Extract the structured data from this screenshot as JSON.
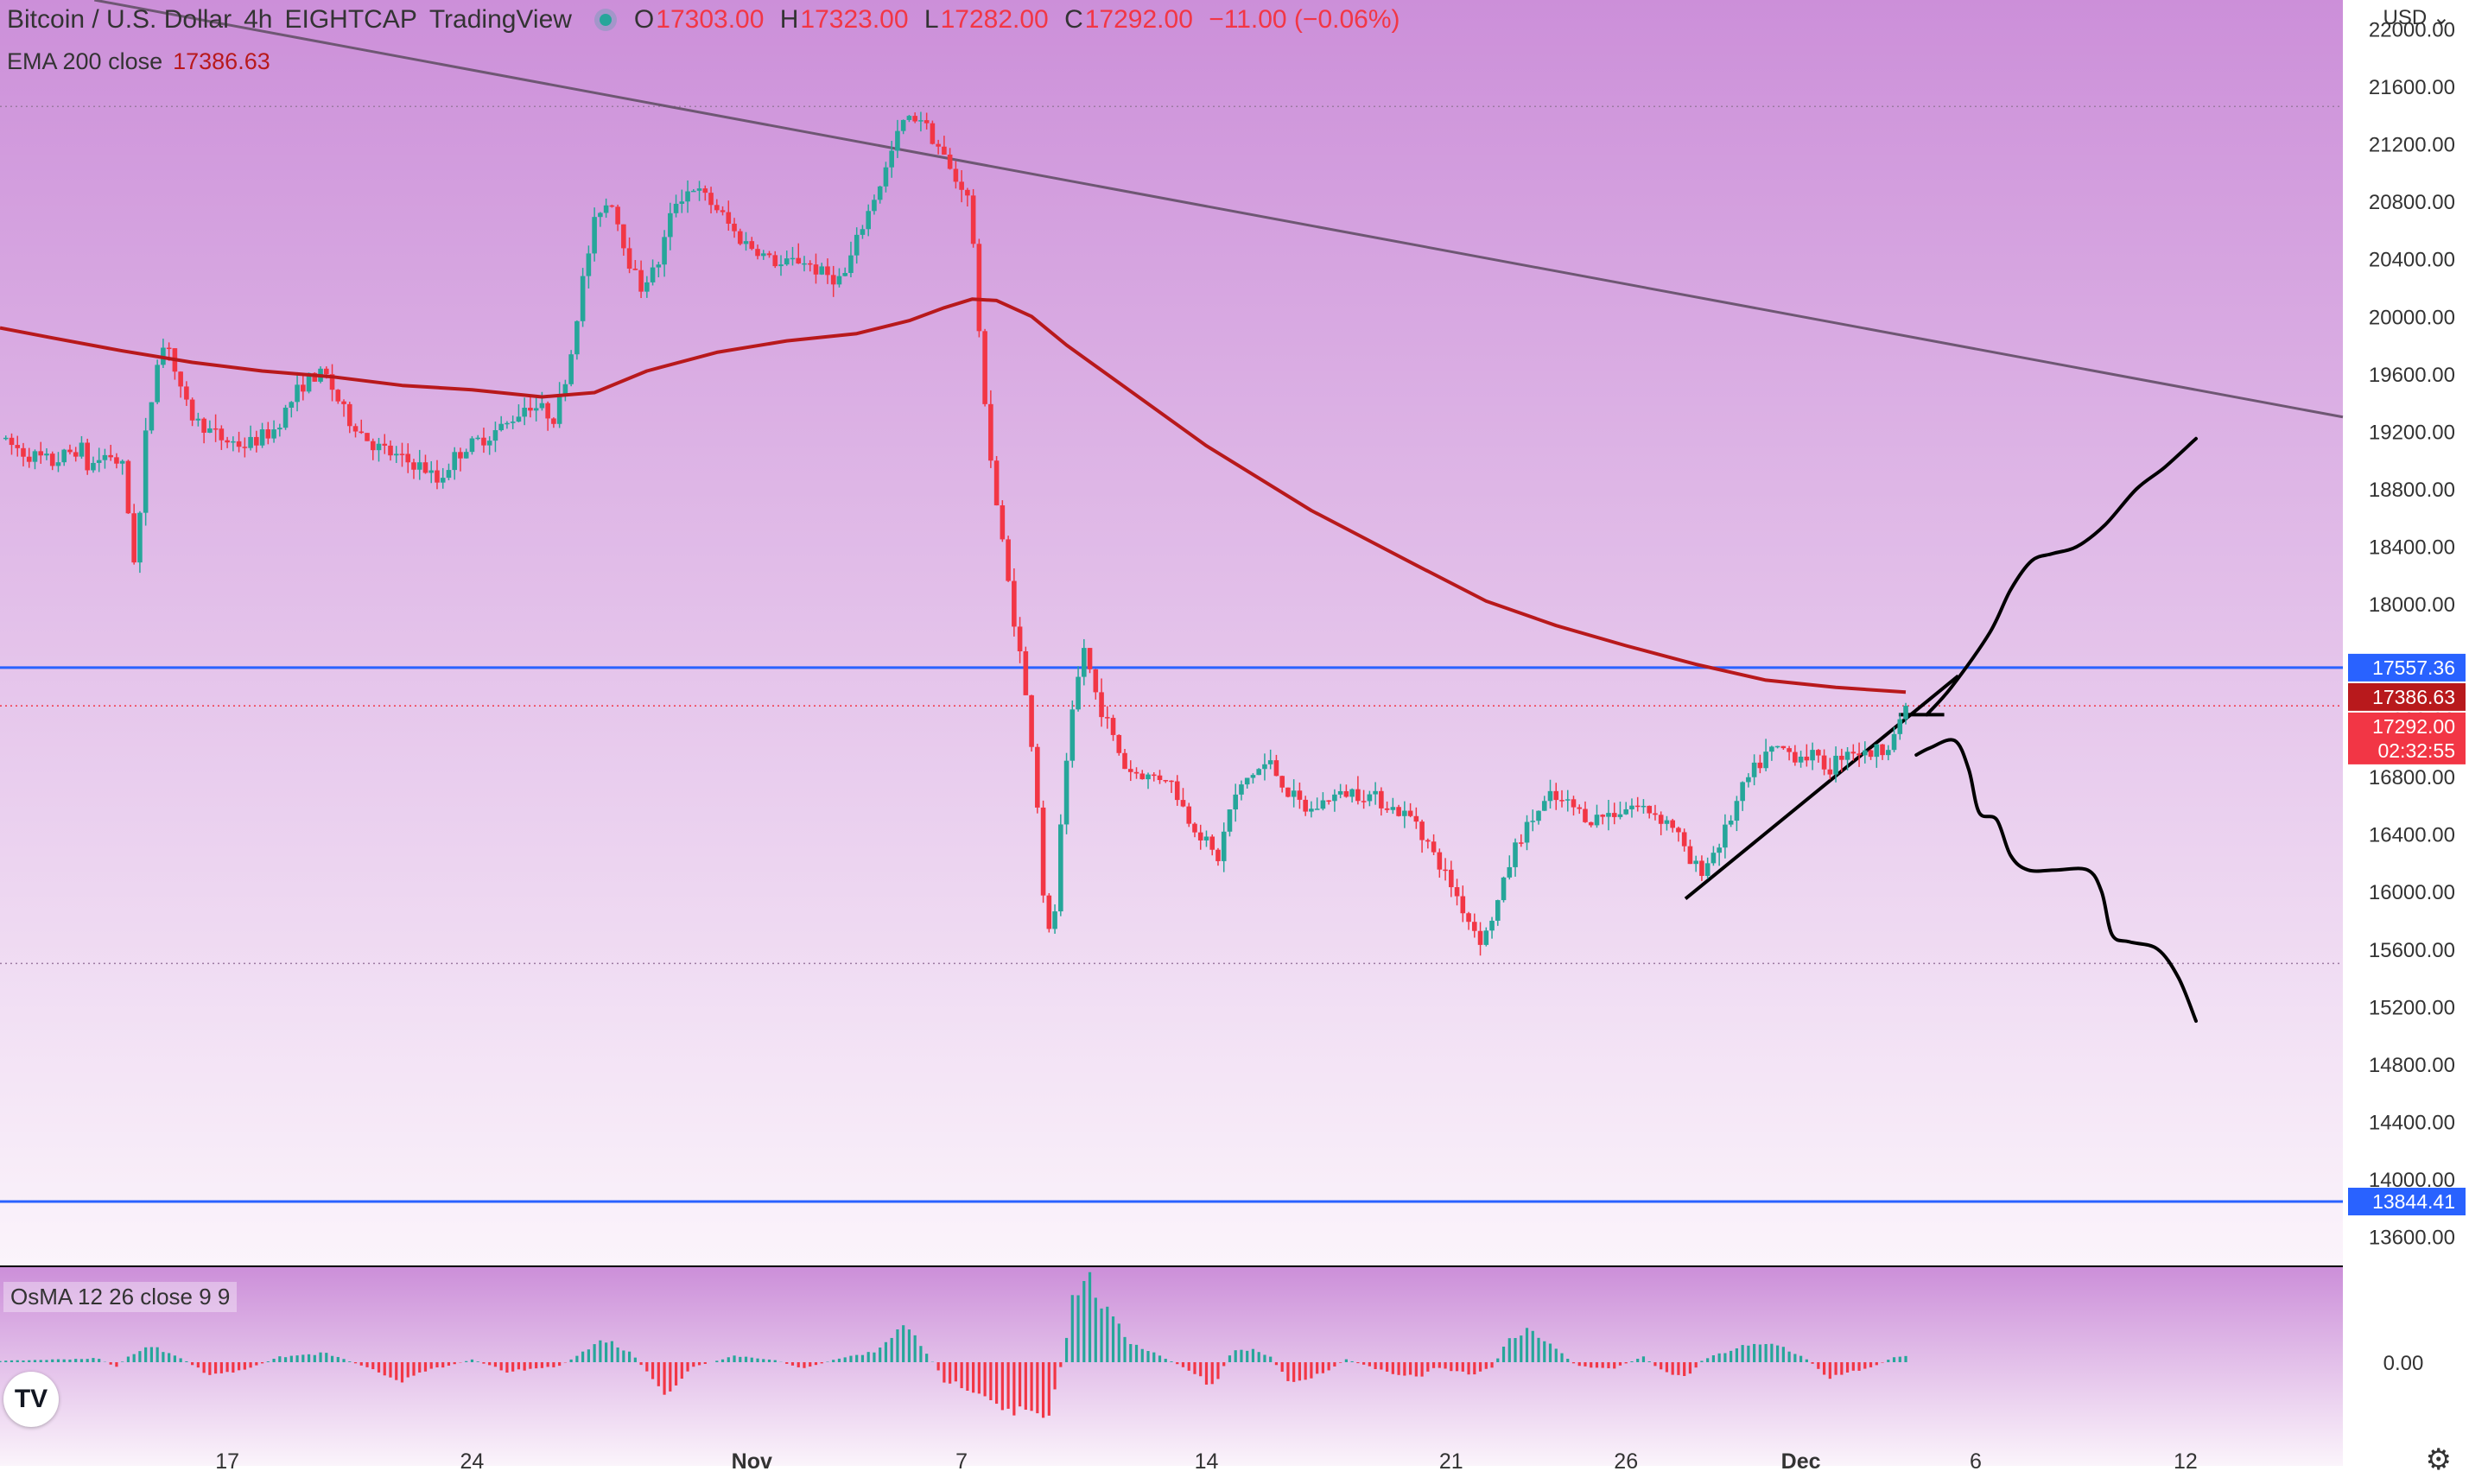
{
  "header": {
    "symbol": "Bitcoin / U.S. Dollar",
    "interval": "4h",
    "exchange": "EIGHTCAP",
    "source": "TradingView",
    "open_label": "O",
    "open": "17303.00",
    "high_label": "H",
    "high": "17323.00",
    "low_label": "L",
    "low": "17282.00",
    "close_label": "C",
    "close": "17292.00",
    "change": "−11.00 (−0.06%)"
  },
  "ema_legend": {
    "label": "EMA 200 close",
    "value": "17386.63"
  },
  "osma_legend": {
    "label": "OsMA 12 26 close 9 9"
  },
  "logo": {
    "text": "TV"
  },
  "currency_menu": {
    "label": "USD",
    "icon": "chevron-down-icon"
  },
  "settings": {
    "icon": "gear-icon"
  },
  "colors": {
    "up": "#26a69a",
    "down": "#f23645",
    "ema": "#b8191c",
    "level": "#2962ff",
    "trendline": "#6e5773",
    "drawing": "#000000",
    "bg_top": "#cc8fd9",
    "bg_bottom": "#fbf4fb"
  },
  "chart_data": [
    {
      "type": "candlestick",
      "title": "Bitcoin / U.S. Dollar",
      "y_axis": {
        "range": [
          13400,
          22200
        ],
        "tick_labels": [
          "13600.00",
          "14000.00",
          "14400.00",
          "14800.00",
          "15200.00",
          "15600.00",
          "16000.00",
          "16400.00",
          "16800.00",
          "17200.00",
          "17600.00",
          "18000.00",
          "18400.00",
          "18800.00",
          "19200.00",
          "19600.00",
          "20000.00",
          "20400.00",
          "20800.00",
          "21200.00",
          "21600.00",
          "22000.00"
        ],
        "position": "right"
      },
      "x_axis": {
        "tick_labels": [
          {
            "label": "17",
            "day": 17
          },
          {
            "label": "24",
            "day": 24
          },
          {
            "label": "Nov",
            "day": 32
          },
          {
            "label": "7",
            "day": 38
          },
          {
            "label": "14",
            "day": 45
          },
          {
            "label": "21",
            "day": 52
          },
          {
            "label": "26",
            "day": 57
          },
          {
            "label": "Dec",
            "day": 62
          },
          {
            "label": "6",
            "day": 67
          },
          {
            "label": "12",
            "day": 73
          }
        ],
        "range_days": [
          10.5,
          77.5
        ]
      },
      "price_series_anchors": [
        [
          10.5,
          19150
        ],
        [
          11.2,
          19050
        ],
        [
          12,
          18980
        ],
        [
          12.8,
          19100
        ],
        [
          13,
          18950
        ],
        [
          13.6,
          19050
        ],
        [
          14,
          18950
        ],
        [
          14.4,
          18200
        ],
        [
          14.6,
          19050
        ],
        [
          15,
          19700
        ],
        [
          15.3,
          19850
        ],
        [
          15.6,
          19500
        ],
        [
          16,
          19300
        ],
        [
          16.8,
          19150
        ],
        [
          17.5,
          19100
        ],
        [
          18.3,
          19200
        ],
        [
          18.8,
          19400
        ],
        [
          19.2,
          19550
        ],
        [
          19.8,
          19600
        ],
        [
          20.4,
          19300
        ],
        [
          21.2,
          19100
        ],
        [
          22,
          19000
        ],
        [
          22.6,
          18950
        ],
        [
          23,
          18850
        ],
        [
          23.6,
          19050
        ],
        [
          24.3,
          19150
        ],
        [
          25,
          19250
        ],
        [
          25.6,
          19400
        ],
        [
          26,
          19350
        ],
        [
          26.4,
          19300
        ],
        [
          26.8,
          19700
        ],
        [
          27.2,
          20300
        ],
        [
          27.6,
          20750
        ],
        [
          28,
          20800
        ],
        [
          28.4,
          20450
        ],
        [
          28.8,
          20200
        ],
        [
          29.3,
          20350
        ],
        [
          29.8,
          20800
        ],
        [
          30.3,
          20900
        ],
        [
          31,
          20750
        ],
        [
          31.6,
          20550
        ],
        [
          32.2,
          20450
        ],
        [
          32.8,
          20350
        ],
        [
          33.4,
          20400
        ],
        [
          34,
          20300
        ],
        [
          34.6,
          20250
        ],
        [
          35.2,
          20650
        ],
        [
          35.8,
          21000
        ],
        [
          36.3,
          21350
        ],
        [
          36.8,
          21400
        ],
        [
          37.3,
          21200
        ],
        [
          37.8,
          20950
        ],
        [
          38.1,
          20900
        ],
        [
          38.3,
          20650
        ],
        [
          38.5,
          19850
        ],
        [
          38.9,
          18850
        ],
        [
          39.3,
          18200
        ],
        [
          39.7,
          17600
        ],
        [
          40.1,
          16850
        ],
        [
          40.4,
          15750
        ],
        [
          40.6,
          15650
        ],
        [
          40.9,
          16650
        ],
        [
          41.2,
          17300
        ],
        [
          41.5,
          17700
        ],
        [
          41.8,
          17400
        ],
        [
          42.2,
          17150
        ],
        [
          42.7,
          16850
        ],
        [
          43.3,
          16800
        ],
        [
          43.9,
          16800
        ],
        [
          44.5,
          16500
        ],
        [
          45,
          16350
        ],
        [
          45.3,
          16200
        ],
        [
          45.7,
          16600
        ],
        [
          46.2,
          16800
        ],
        [
          46.8,
          16900
        ],
        [
          47.3,
          16700
        ],
        [
          47.9,
          16550
        ],
        [
          48.5,
          16650
        ],
        [
          49.2,
          16700
        ],
        [
          49.9,
          16650
        ],
        [
          50.5,
          16550
        ],
        [
          51,
          16500
        ],
        [
          51.5,
          16250
        ],
        [
          52,
          16050
        ],
        [
          52.5,
          15800
        ],
        [
          52.9,
          15650
        ],
        [
          53.3,
          15900
        ],
        [
          53.8,
          16300
        ],
        [
          54.3,
          16500
        ],
        [
          54.8,
          16650
        ],
        [
          55.4,
          16600
        ],
        [
          56,
          16500
        ],
        [
          56.6,
          16550
        ],
        [
          57.2,
          16600
        ],
        [
          57.8,
          16550
        ],
        [
          58.4,
          16450
        ],
        [
          58.8,
          16200
        ],
        [
          59.2,
          16150
        ],
        [
          59.8,
          16400
        ],
        [
          60.4,
          16750
        ],
        [
          61,
          16950
        ],
        [
          61.4,
          17000
        ],
        [
          61.8,
          16950
        ],
        [
          62.3,
          16950
        ],
        [
          62.8,
          16850
        ],
        [
          63.3,
          17000
        ],
        [
          63.9,
          16950
        ],
        [
          64.4,
          17000
        ],
        [
          64.8,
          17150
        ],
        [
          65.1,
          17292
        ]
      ],
      "ema_200": [
        [
          10.5,
          19920
        ],
        [
          12,
          19850
        ],
        [
          14,
          19760
        ],
        [
          16,
          19680
        ],
        [
          18,
          19620
        ],
        [
          20,
          19580
        ],
        [
          22,
          19520
        ],
        [
          24,
          19490
        ],
        [
          26,
          19440
        ],
        [
          27.5,
          19470
        ],
        [
          29,
          19620
        ],
        [
          31,
          19750
        ],
        [
          33,
          19830
        ],
        [
          35,
          19880
        ],
        [
          36.5,
          19970
        ],
        [
          37.5,
          20060
        ],
        [
          38.3,
          20120
        ],
        [
          39,
          20110
        ],
        [
          40,
          20000
        ],
        [
          41,
          19800
        ],
        [
          43,
          19450
        ],
        [
          45,
          19100
        ],
        [
          48,
          18650
        ],
        [
          51,
          18270
        ],
        [
          53,
          18020
        ],
        [
          55,
          17850
        ],
        [
          57,
          17710
        ],
        [
          59,
          17580
        ],
        [
          61,
          17470
        ],
        [
          63,
          17420
        ],
        [
          65,
          17387
        ]
      ],
      "horizontal_levels": [
        {
          "price": 17557.36,
          "label": "17557.36",
          "style": "solid",
          "color": "#2962ff"
        },
        {
          "price": 13844.41,
          "label": "13844.41",
          "style": "solid",
          "color": "#2962ff"
        },
        {
          "price": 21460,
          "style": "dotted",
          "color": "#9c7aa2"
        },
        {
          "price": 15500,
          "style": "dotted",
          "color": "#9c7aa2"
        },
        {
          "price": 17292.0,
          "style": "dotted",
          "color": "#f23645"
        }
      ],
      "price_labels": [
        {
          "value": "17557.36",
          "color": "#2962ff"
        },
        {
          "value": "17386.63",
          "color": "#b8191c"
        },
        {
          "value": "17292.00",
          "sub": "02:32:55",
          "color": "#f23645"
        }
      ],
      "trendlines": [
        {
          "from": [
            13.2,
            22200
          ],
          "to": [
            77.5,
            19300
          ],
          "color": "#6e5773"
        },
        {
          "from": [
            58.7,
            15950
          ],
          "to": [
            66.5,
            17500
          ],
          "color": "#000000"
        },
        {
          "from": [
            64.8,
            17230
          ],
          "to": [
            66.1,
            17230
          ],
          "color": "#000000"
        }
      ],
      "projections": [
        {
          "name": "bullish",
          "points": [
            [
              65.6,
              17230
            ],
            [
              66.3,
              17420
            ],
            [
              67.4,
              17800
            ],
            [
              68,
              18100
            ],
            [
              68.6,
              18300
            ],
            [
              69.2,
              18350
            ],
            [
              69.9,
              18400
            ],
            [
              70.7,
              18550
            ],
            [
              71.6,
              18800
            ],
            [
              72.4,
              18950
            ],
            [
              73.3,
              19150
            ]
          ]
        },
        {
          "name": "bearish",
          "points": [
            [
              65.3,
              16950
            ],
            [
              65.7,
              17000
            ],
            [
              66.4,
              17050
            ],
            [
              66.8,
              16850
            ],
            [
              67.1,
              16550
            ],
            [
              67.6,
              16500
            ],
            [
              68,
              16250
            ],
            [
              68.5,
              16150
            ],
            [
              69.3,
              16150
            ],
            [
              70.2,
              16150
            ],
            [
              70.6,
              16000
            ],
            [
              70.9,
              15700
            ],
            [
              71.4,
              15650
            ],
            [
              72.2,
              15600
            ],
            [
              72.8,
              15400
            ],
            [
              73.3,
              15100
            ]
          ]
        }
      ]
    },
    {
      "type": "bar",
      "title": "OsMA 12 26 close 9 9",
      "y_axis": {
        "tick_labels": [
          "0.00"
        ]
      },
      "colors": {
        "positive": "#26a69a",
        "negative": "#f23645"
      },
      "histogram_anchors": [
        [
          10.5,
          0.05
        ],
        [
          12,
          0.1
        ],
        [
          13.3,
          0.15
        ],
        [
          13.8,
          -0.2
        ],
        [
          14.3,
          0.35
        ],
        [
          14.8,
          0.6
        ],
        [
          15.5,
          0.3
        ],
        [
          16.5,
          -0.5
        ],
        [
          17.5,
          -0.3
        ],
        [
          18.5,
          0.2
        ],
        [
          19.8,
          0.35
        ],
        [
          20.8,
          -0.1
        ],
        [
          22,
          -0.7
        ],
        [
          22.8,
          -0.3
        ],
        [
          24,
          0.1
        ],
        [
          25,
          -0.35
        ],
        [
          26.5,
          -0.15
        ],
        [
          27.8,
          0.9
        ],
        [
          28.6,
          0.3
        ],
        [
          29.5,
          -1.3
        ],
        [
          30.3,
          -0.2
        ],
        [
          31.5,
          0.25
        ],
        [
          32.6,
          0.1
        ],
        [
          33.5,
          -0.25
        ],
        [
          34.5,
          0.15
        ],
        [
          35.5,
          0.4
        ],
        [
          36.3,
          1.4
        ],
        [
          36.8,
          0.8
        ],
        [
          37.5,
          -0.7
        ],
        [
          38.5,
          -1.1
        ],
        [
          39.3,
          -1.8
        ],
        [
          40,
          -2.0
        ],
        [
          40.5,
          -2.2
        ],
        [
          40.9,
          0.2
        ],
        [
          41.2,
          2.7
        ],
        [
          41.6,
          3.3
        ],
        [
          42.2,
          1.8
        ],
        [
          42.8,
          0.8
        ],
        [
          43.6,
          0.3
        ],
        [
          44.5,
          -0.3
        ],
        [
          45.2,
          -1.0
        ],
        [
          45.7,
          0.4
        ],
        [
          46.3,
          0.5
        ],
        [
          46.8,
          0.25
        ],
        [
          47.4,
          -0.8
        ],
        [
          48.2,
          -0.5
        ],
        [
          49,
          0.1
        ],
        [
          50,
          -0.3
        ],
        [
          51,
          -0.6
        ],
        [
          51.6,
          -0.2
        ],
        [
          52.6,
          -0.5
        ],
        [
          53.2,
          -0.2
        ],
        [
          53.6,
          0.8
        ],
        [
          54.3,
          1.3
        ],
        [
          55,
          0.5
        ],
        [
          55.6,
          -0.15
        ],
        [
          56.6,
          -0.25
        ],
        [
          57.5,
          0.2
        ],
        [
          58,
          -0.3
        ],
        [
          58.7,
          -0.6
        ],
        [
          59.2,
          0.1
        ],
        [
          60.3,
          0.6
        ],
        [
          61.3,
          0.7
        ],
        [
          62.2,
          0.1
        ],
        [
          62.8,
          -0.6
        ],
        [
          63.4,
          -0.4
        ],
        [
          64.2,
          -0.1
        ],
        [
          64.6,
          0.15
        ],
        [
          65.1,
          0.3
        ]
      ]
    }
  ]
}
